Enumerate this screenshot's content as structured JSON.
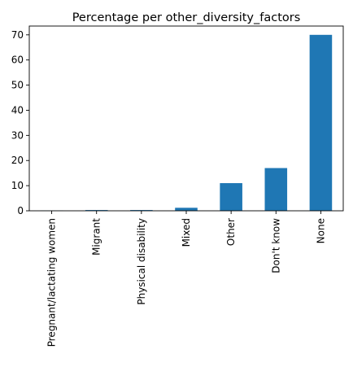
{
  "chart_data": {
    "type": "bar",
    "title": "Percentage per other_diversity_factors",
    "xlabel": "",
    "ylabel": "",
    "categories": [
      "Pregnant/lactating women",
      "Migrant",
      "Physical disability",
      "Mixed",
      "Other",
      "Don't know",
      "None"
    ],
    "values": [
      0.1,
      0.3,
      0.3,
      1.2,
      11,
      17,
      70
    ],
    "ylim": [
      0,
      73.5
    ],
    "yticks": [
      0,
      10,
      20,
      30,
      40,
      50,
      60,
      70
    ],
    "grid": false,
    "legend": "none",
    "bar_color": "#1f77b4"
  }
}
